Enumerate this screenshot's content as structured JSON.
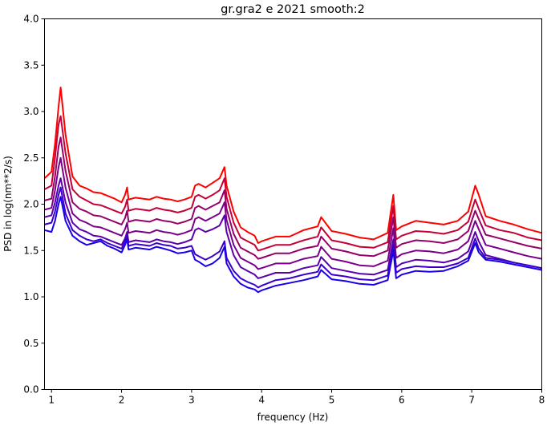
{
  "chart_data": {
    "type": "line",
    "title": "gr.gra2 e 2021 smooth:2",
    "xlabel": "frequency (Hz)",
    "ylabel": "PSD in log(nm**2/s)",
    "xlim": [
      0.9,
      8.0
    ],
    "ylim": [
      0.0,
      4.0
    ],
    "xticks": [
      1,
      2,
      3,
      4,
      5,
      6,
      7,
      8
    ],
    "yticks": [
      0.0,
      0.5,
      1.0,
      1.5,
      2.0,
      2.5,
      3.0,
      3.5,
      4.0
    ],
    "grid": false,
    "legend": "none",
    "series": [
      {
        "color": "#ff0000",
        "x": [
          0.9,
          1.0,
          1.05,
          1.1,
          1.13,
          1.2,
          1.3,
          1.4,
          1.5,
          1.6,
          1.7,
          1.8,
          1.9,
          2.0,
          2.05,
          2.08,
          2.1,
          2.2,
          2.3,
          2.4,
          2.5,
          2.6,
          2.7,
          2.8,
          2.9,
          3.0,
          3.05,
          3.1,
          3.2,
          3.3,
          3.4,
          3.47,
          3.5,
          3.6,
          3.7,
          3.8,
          3.9,
          3.95,
          4.0,
          4.2,
          4.4,
          4.6,
          4.8,
          4.85,
          5.0,
          5.2,
          5.4,
          5.6,
          5.8,
          5.88,
          5.92,
          6.0,
          6.2,
          6.4,
          6.6,
          6.8,
          6.95,
          7.05,
          7.1,
          7.2,
          7.4,
          7.6,
          7.8,
          8.0
        ],
        "y": [
          2.28,
          2.35,
          2.65,
          3.05,
          3.26,
          2.75,
          2.3,
          2.2,
          2.17,
          2.13,
          2.12,
          2.09,
          2.06,
          2.02,
          2.1,
          2.18,
          2.05,
          2.07,
          2.06,
          2.05,
          2.08,
          2.06,
          2.05,
          2.03,
          2.05,
          2.08,
          2.2,
          2.22,
          2.18,
          2.23,
          2.28,
          2.4,
          2.2,
          1.92,
          1.75,
          1.7,
          1.66,
          1.58,
          1.6,
          1.65,
          1.65,
          1.72,
          1.76,
          1.86,
          1.71,
          1.68,
          1.64,
          1.62,
          1.69,
          2.1,
          1.72,
          1.76,
          1.82,
          1.8,
          1.78,
          1.82,
          1.92,
          2.2,
          2.1,
          1.87,
          1.82,
          1.78,
          1.73,
          1.69
        ]
      },
      {
        "color": "#c40038",
        "x": [
          0.9,
          1.0,
          1.05,
          1.1,
          1.13,
          1.2,
          1.3,
          1.4,
          1.5,
          1.6,
          1.7,
          1.8,
          1.9,
          2.0,
          2.05,
          2.08,
          2.1,
          2.2,
          2.3,
          2.4,
          2.5,
          2.6,
          2.7,
          2.8,
          2.9,
          3.0,
          3.05,
          3.1,
          3.2,
          3.3,
          3.4,
          3.47,
          3.5,
          3.6,
          3.7,
          3.8,
          3.9,
          3.95,
          4.0,
          4.2,
          4.4,
          4.6,
          4.8,
          4.85,
          5.0,
          5.2,
          5.4,
          5.6,
          5.8,
          5.88,
          5.92,
          6.0,
          6.2,
          6.4,
          6.6,
          6.8,
          6.95,
          7.05,
          7.1,
          7.2,
          7.4,
          7.6,
          7.8,
          8.0
        ],
        "y": [
          2.16,
          2.2,
          2.5,
          2.86,
          2.95,
          2.55,
          2.16,
          2.08,
          2.04,
          2.0,
          1.99,
          1.96,
          1.93,
          1.9,
          1.97,
          2.05,
          1.93,
          1.95,
          1.94,
          1.93,
          1.96,
          1.94,
          1.93,
          1.91,
          1.93,
          1.96,
          2.08,
          2.1,
          2.06,
          2.1,
          2.15,
          2.28,
          2.08,
          1.8,
          1.64,
          1.6,
          1.56,
          1.5,
          1.51,
          1.56,
          1.56,
          1.61,
          1.65,
          1.75,
          1.61,
          1.58,
          1.54,
          1.53,
          1.59,
          1.98,
          1.62,
          1.66,
          1.71,
          1.7,
          1.68,
          1.72,
          1.81,
          2.05,
          1.95,
          1.77,
          1.72,
          1.69,
          1.64,
          1.61
        ]
      },
      {
        "color": "#960069",
        "x": [
          0.9,
          1.0,
          1.05,
          1.1,
          1.13,
          1.2,
          1.3,
          1.4,
          1.5,
          1.6,
          1.7,
          1.8,
          1.9,
          2.0,
          2.05,
          2.08,
          2.1,
          2.2,
          2.3,
          2.4,
          2.5,
          2.6,
          2.7,
          2.8,
          2.9,
          3.0,
          3.05,
          3.1,
          3.2,
          3.3,
          3.4,
          3.47,
          3.5,
          3.6,
          3.7,
          3.8,
          3.9,
          3.95,
          4.0,
          4.2,
          4.4,
          4.6,
          4.8,
          4.85,
          5.0,
          5.2,
          5.4,
          5.6,
          5.8,
          5.88,
          5.92,
          6.0,
          6.2,
          6.4,
          6.6,
          6.8,
          6.95,
          7.05,
          7.1,
          7.2,
          7.4,
          7.6,
          7.8,
          8.0
        ],
        "y": [
          2.04,
          2.06,
          2.3,
          2.62,
          2.72,
          2.36,
          2.02,
          1.95,
          1.92,
          1.88,
          1.87,
          1.84,
          1.81,
          1.78,
          1.85,
          1.93,
          1.81,
          1.83,
          1.82,
          1.81,
          1.84,
          1.82,
          1.81,
          1.79,
          1.81,
          1.84,
          1.96,
          1.98,
          1.94,
          1.98,
          2.02,
          2.15,
          1.95,
          1.68,
          1.53,
          1.49,
          1.45,
          1.41,
          1.42,
          1.47,
          1.47,
          1.52,
          1.55,
          1.65,
          1.52,
          1.49,
          1.45,
          1.44,
          1.5,
          1.86,
          1.53,
          1.57,
          1.61,
          1.6,
          1.58,
          1.62,
          1.71,
          1.93,
          1.84,
          1.67,
          1.63,
          1.59,
          1.55,
          1.52
        ]
      },
      {
        "color": "#7a008a",
        "x": [
          0.9,
          1.0,
          1.05,
          1.1,
          1.13,
          1.2,
          1.3,
          1.4,
          1.5,
          1.6,
          1.7,
          1.8,
          1.9,
          2.0,
          2.05,
          2.08,
          2.1,
          2.2,
          2.3,
          2.4,
          2.5,
          2.6,
          2.7,
          2.8,
          2.9,
          3.0,
          3.05,
          3.1,
          3.2,
          3.3,
          3.4,
          3.47,
          3.5,
          3.6,
          3.7,
          3.8,
          3.9,
          3.95,
          4.0,
          4.2,
          4.4,
          4.6,
          4.8,
          4.85,
          5.0,
          5.2,
          5.4,
          5.6,
          5.8,
          5.88,
          5.92,
          6.0,
          6.2,
          6.4,
          6.6,
          6.8,
          6.95,
          7.05,
          7.1,
          7.2,
          7.4,
          7.6,
          7.8,
          8.0
        ],
        "y": [
          1.94,
          1.96,
          2.15,
          2.4,
          2.5,
          2.18,
          1.9,
          1.83,
          1.8,
          1.76,
          1.75,
          1.72,
          1.69,
          1.66,
          1.73,
          1.8,
          1.69,
          1.71,
          1.7,
          1.69,
          1.72,
          1.7,
          1.69,
          1.67,
          1.69,
          1.72,
          1.84,
          1.86,
          1.82,
          1.86,
          1.9,
          2.02,
          1.83,
          1.56,
          1.42,
          1.38,
          1.34,
          1.3,
          1.31,
          1.36,
          1.36,
          1.41,
          1.44,
          1.54,
          1.41,
          1.38,
          1.34,
          1.33,
          1.39,
          1.74,
          1.42,
          1.46,
          1.5,
          1.49,
          1.47,
          1.51,
          1.6,
          1.82,
          1.73,
          1.56,
          1.52,
          1.48,
          1.44,
          1.41
        ]
      },
      {
        "color": "#5a00ab",
        "x": [
          0.9,
          1.0,
          1.05,
          1.1,
          1.13,
          1.2,
          1.3,
          1.4,
          1.5,
          1.6,
          1.7,
          1.8,
          1.9,
          2.0,
          2.05,
          2.08,
          2.1,
          2.2,
          2.3,
          2.4,
          2.5,
          2.6,
          2.7,
          2.8,
          2.9,
          3.0,
          3.05,
          3.1,
          3.2,
          3.3,
          3.4,
          3.47,
          3.5,
          3.6,
          3.7,
          3.8,
          3.9,
          3.95,
          4.0,
          4.2,
          4.4,
          4.6,
          4.8,
          4.85,
          5.0,
          5.2,
          5.4,
          5.6,
          5.8,
          5.88,
          5.92,
          6.0,
          6.2,
          6.4,
          6.6,
          6.8,
          6.95,
          7.05,
          7.1,
          7.2,
          7.4,
          7.6,
          7.8,
          8.0
        ],
        "y": [
          1.86,
          1.88,
          2.02,
          2.2,
          2.28,
          2.02,
          1.8,
          1.73,
          1.7,
          1.66,
          1.65,
          1.62,
          1.59,
          1.56,
          1.63,
          1.7,
          1.59,
          1.61,
          1.6,
          1.59,
          1.62,
          1.6,
          1.59,
          1.57,
          1.59,
          1.62,
          1.72,
          1.74,
          1.7,
          1.73,
          1.77,
          1.88,
          1.7,
          1.45,
          1.32,
          1.28,
          1.24,
          1.2,
          1.21,
          1.26,
          1.26,
          1.31,
          1.34,
          1.43,
          1.31,
          1.28,
          1.25,
          1.24,
          1.29,
          1.62,
          1.32,
          1.36,
          1.4,
          1.39,
          1.37,
          1.41,
          1.49,
          1.7,
          1.6,
          1.45,
          1.41,
          1.37,
          1.34,
          1.31
        ]
      },
      {
        "color": "#3a00cb",
        "x": [
          0.9,
          1.0,
          1.05,
          1.1,
          1.13,
          1.2,
          1.3,
          1.4,
          1.5,
          1.6,
          1.7,
          1.8,
          1.9,
          2.0,
          2.05,
          2.08,
          2.1,
          2.2,
          2.3,
          2.4,
          2.5,
          2.6,
          2.7,
          2.8,
          2.9,
          3.0,
          3.05,
          3.1,
          3.2,
          3.3,
          3.4,
          3.47,
          3.5,
          3.6,
          3.7,
          3.8,
          3.9,
          3.95,
          4.0,
          4.2,
          4.4,
          4.6,
          4.8,
          4.85,
          5.0,
          5.2,
          5.4,
          5.6,
          5.8,
          5.88,
          5.92,
          6.0,
          6.2,
          6.4,
          6.6,
          6.8,
          6.95,
          7.05,
          7.1,
          7.2,
          7.4,
          7.6,
          7.8,
          8.0
        ],
        "y": [
          1.78,
          1.8,
          1.92,
          2.1,
          2.18,
          1.9,
          1.72,
          1.66,
          1.62,
          1.6,
          1.62,
          1.58,
          1.55,
          1.52,
          1.6,
          1.66,
          1.55,
          1.57,
          1.56,
          1.55,
          1.58,
          1.56,
          1.55,
          1.52,
          1.53,
          1.55,
          1.46,
          1.44,
          1.4,
          1.44,
          1.49,
          1.6,
          1.42,
          1.28,
          1.2,
          1.16,
          1.13,
          1.1,
          1.12,
          1.18,
          1.2,
          1.24,
          1.27,
          1.35,
          1.24,
          1.22,
          1.19,
          1.18,
          1.23,
          1.56,
          1.26,
          1.3,
          1.33,
          1.32,
          1.32,
          1.36,
          1.42,
          1.63,
          1.52,
          1.42,
          1.4,
          1.37,
          1.34,
          1.31
        ]
      },
      {
        "color": "#1a00ea",
        "x": [
          0.9,
          1.0,
          1.05,
          1.1,
          1.13,
          1.2,
          1.3,
          1.4,
          1.5,
          1.6,
          1.7,
          1.8,
          1.9,
          2.0,
          2.05,
          2.08,
          2.1,
          2.2,
          2.3,
          2.4,
          2.5,
          2.6,
          2.7,
          2.8,
          2.9,
          3.0,
          3.05,
          3.1,
          3.2,
          3.3,
          3.4,
          3.47,
          3.5,
          3.6,
          3.7,
          3.8,
          3.9,
          3.95,
          4.0,
          4.2,
          4.4,
          4.6,
          4.8,
          4.85,
          5.0,
          5.2,
          5.4,
          5.6,
          5.8,
          5.88,
          5.92,
          6.0,
          6.2,
          6.4,
          6.6,
          6.8,
          6.95,
          7.05,
          7.1,
          7.2,
          7.4,
          7.6,
          7.8,
          8.0
        ],
        "y": [
          1.72,
          1.7,
          1.82,
          2.0,
          2.08,
          1.82,
          1.66,
          1.6,
          1.56,
          1.58,
          1.6,
          1.55,
          1.52,
          1.48,
          1.56,
          1.62,
          1.51,
          1.53,
          1.52,
          1.51,
          1.54,
          1.52,
          1.5,
          1.47,
          1.48,
          1.5,
          1.4,
          1.38,
          1.33,
          1.36,
          1.42,
          1.54,
          1.36,
          1.22,
          1.14,
          1.1,
          1.08,
          1.05,
          1.07,
          1.12,
          1.15,
          1.18,
          1.22,
          1.29,
          1.19,
          1.17,
          1.14,
          1.13,
          1.18,
          1.5,
          1.2,
          1.24,
          1.28,
          1.27,
          1.28,
          1.33,
          1.39,
          1.58,
          1.48,
          1.4,
          1.38,
          1.35,
          1.32,
          1.29
        ]
      }
    ]
  }
}
